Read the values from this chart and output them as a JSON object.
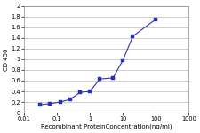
{
  "x": [
    0.031,
    0.062,
    0.125,
    0.25,
    0.5,
    1.0,
    2.0,
    5.0,
    10.0,
    20.0,
    100.0
  ],
  "y": [
    0.15,
    0.17,
    0.2,
    0.25,
    0.38,
    0.4,
    0.63,
    0.65,
    0.98,
    1.43,
    1.75
  ],
  "line_color": "#3333aa",
  "marker_color": "#2233bb",
  "marker": "s",
  "markersize": 2.2,
  "linewidth": 0.8,
  "xlabel": "Recombinant ProteinConcentration(ng/ml)",
  "ylabel": "CD 450",
  "xlim": [
    0.01,
    1000
  ],
  "ylim": [
    0,
    2
  ],
  "yticks": [
    0,
    0.2,
    0.4,
    0.6,
    0.8,
    1.0,
    1.2,
    1.4,
    1.6,
    1.8,
    2.0
  ],
  "ytick_labels": [
    "0",
    "0.2",
    "0.4",
    "0.6",
    "0.8",
    "1",
    "1.2",
    "1.4",
    "1.6",
    "1.8",
    "2"
  ],
  "xticks": [
    0.01,
    0.1,
    1,
    10,
    100,
    1000
  ],
  "xtick_labels": [
    "0.01",
    "0.1",
    "1",
    "10",
    "100",
    "1000"
  ],
  "grid_color": "#bbbbbb",
  "bg_color": "#ffffff",
  "fig_bg_color": "#ffffff",
  "xlabel_fontsize": 5.0,
  "ylabel_fontsize": 5.0,
  "tick_fontsize": 4.8
}
